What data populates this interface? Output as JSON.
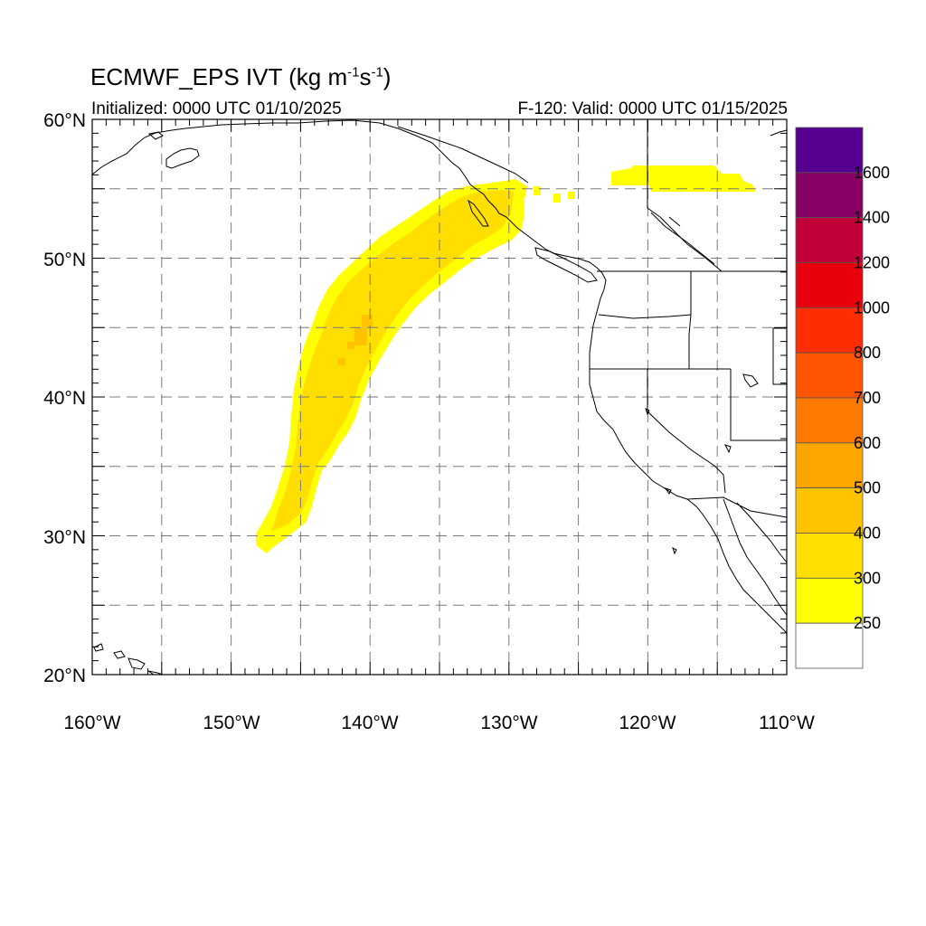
{
  "title": {
    "main": "ECMWF_EPS IVT (kg m",
    "exp1": "-1",
    "mid": "s",
    "exp2": "-1",
    "end": ")"
  },
  "subtitle_left": "Initialized: 0000 UTC 01/10/2025",
  "subtitle_right": "F-120: Valid: 0000 UTC 01/15/2025",
  "map": {
    "lon_range": [
      -160,
      -110
    ],
    "lat_range": [
      20,
      60
    ],
    "grid_lines": "dashed, every 5 degrees",
    "lon_labels": [
      "160°W",
      "150°W",
      "140°W",
      "130°W",
      "120°W",
      "110°W"
    ],
    "lat_labels": [
      "60°N",
      "50°N",
      "40°N",
      "30°N",
      "20°N"
    ],
    "field": "IVT",
    "plume_color_250_300": "#ffff00",
    "plume_color_300_400": "#ffde00",
    "plume_color_400_500": "#ffc300"
  },
  "colorbar": {
    "labels": [
      "1600",
      "1400",
      "1200",
      "1000",
      "800",
      "700",
      "600",
      "500",
      "400",
      "300",
      "250"
    ],
    "colors": [
      "#550091",
      "#890065",
      "#c1003a",
      "#e8000c",
      "#ff2e00",
      "#ff5500",
      "#ff7a00",
      "#ffa500",
      "#ffc300",
      "#ffde00",
      "#ffff00",
      "#ffffff"
    ]
  }
}
